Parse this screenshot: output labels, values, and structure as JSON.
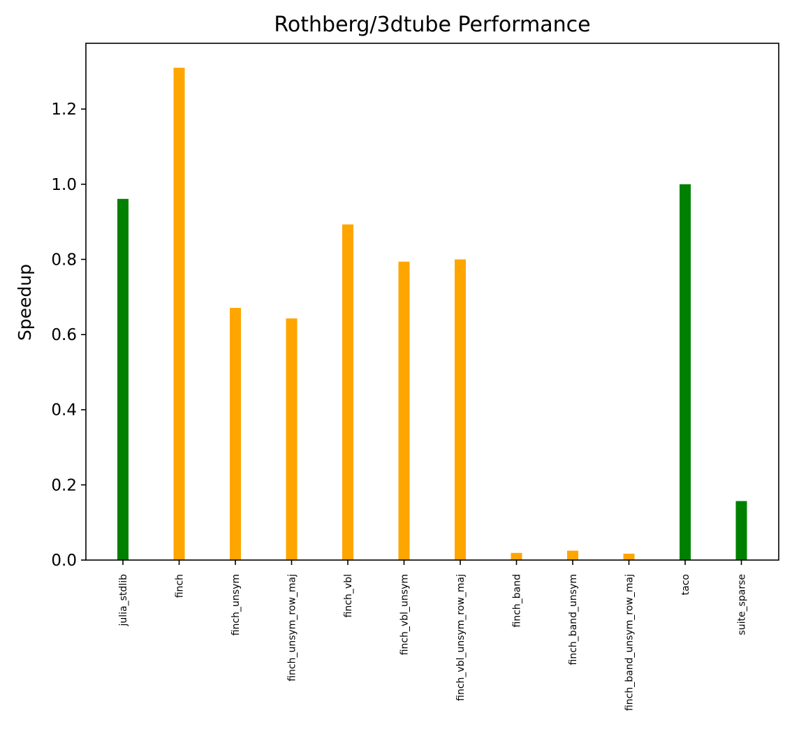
{
  "chart_data": {
    "type": "bar",
    "title": "Rothberg/3dtube Performance",
    "xlabel": "",
    "ylabel": "Speedup",
    "ylim": [
      0,
      1.375
    ],
    "yticks": [
      "0.0",
      "0.2",
      "0.4",
      "0.6",
      "0.8",
      "1.0",
      "1.2"
    ],
    "categories": [
      "julia_stdlib",
      "finch",
      "finch_unsym",
      "finch_unsym_row_maj",
      "finch_vbl",
      "finch_vbl_unsym",
      "finch_vbl_unsym_row_maj",
      "finch_band",
      "finch_band_unsym",
      "finch_band_unsym_row_maj",
      "taco",
      "suite_sparse"
    ],
    "values": [
      0.961,
      1.31,
      0.671,
      0.643,
      0.893,
      0.794,
      0.8,
      0.019,
      0.025,
      0.017,
      1.0,
      0.157
    ],
    "colors": [
      "#008000",
      "#ffa500",
      "#ffa500",
      "#ffa500",
      "#ffa500",
      "#ffa500",
      "#ffa500",
      "#ffa500",
      "#ffa500",
      "#ffa500",
      "#008000",
      "#008000"
    ],
    "grid": false,
    "legend": "none"
  }
}
